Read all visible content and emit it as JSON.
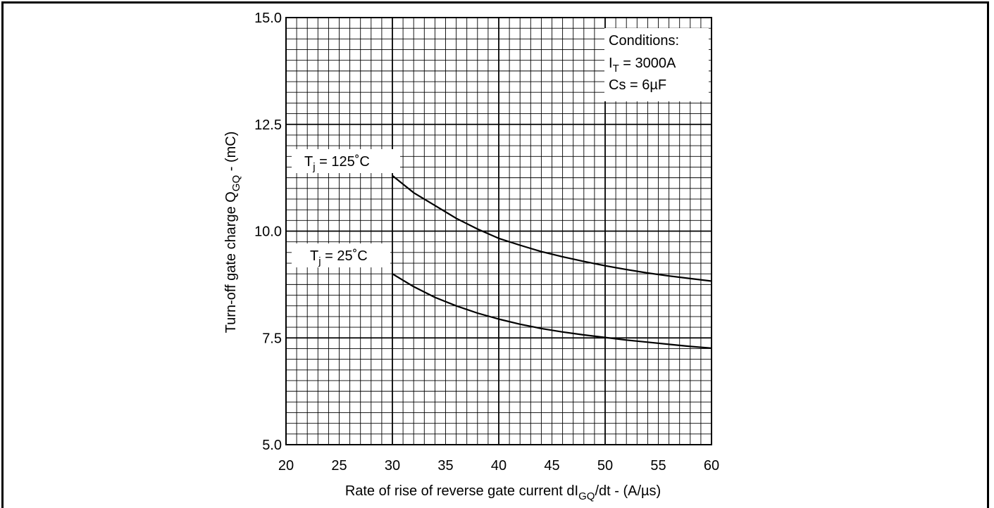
{
  "chart_data": {
    "type": "line",
    "xlabel_main": "Rate of rise of reverse gate current  dI",
    "xlabel_sub": "GQ",
    "xlabel_tail": "/dt - (A/µs)",
    "ylabel_main": "Turn-off gate charge Q",
    "ylabel_sub": "GQ",
    "ylabel_tail": " - (mC)",
    "xlim": [
      20,
      60
    ],
    "ylim": [
      5.0,
      15.0
    ],
    "x_ticks": [
      "20",
      "25",
      "30",
      "35",
      "40",
      "45",
      "50",
      "55",
      "60"
    ],
    "y_ticks": [
      "5.0",
      "7.5",
      "10.0",
      "12.5",
      "15.0"
    ],
    "grid": true,
    "conditions": {
      "title": "Conditions:",
      "line1_main": "I",
      "line1_sub": "T",
      "line1_tail": " = 3000A",
      "line2": "Cs = 6µF"
    },
    "series": [
      {
        "name_main": "T",
        "name_sub": "j",
        "name_tail": " = 125˚C",
        "x": [
          30,
          32,
          34,
          36,
          38,
          40,
          42,
          44,
          46,
          48,
          50,
          52,
          54,
          56,
          58,
          60
        ],
        "y": [
          11.3,
          10.9,
          10.6,
          10.3,
          10.05,
          9.83,
          9.67,
          9.52,
          9.4,
          9.29,
          9.19,
          9.1,
          9.02,
          8.95,
          8.89,
          8.83
        ]
      },
      {
        "name_main": "T",
        "name_sub": "j",
        "name_tail": " = 25˚C",
        "x": [
          30,
          32,
          34,
          36,
          38,
          40,
          42,
          44,
          46,
          48,
          50,
          52,
          54,
          56,
          58,
          60
        ],
        "y": [
          9.0,
          8.7,
          8.45,
          8.25,
          8.08,
          7.94,
          7.82,
          7.72,
          7.64,
          7.57,
          7.51,
          7.45,
          7.4,
          7.35,
          7.3,
          7.26
        ]
      }
    ]
  }
}
